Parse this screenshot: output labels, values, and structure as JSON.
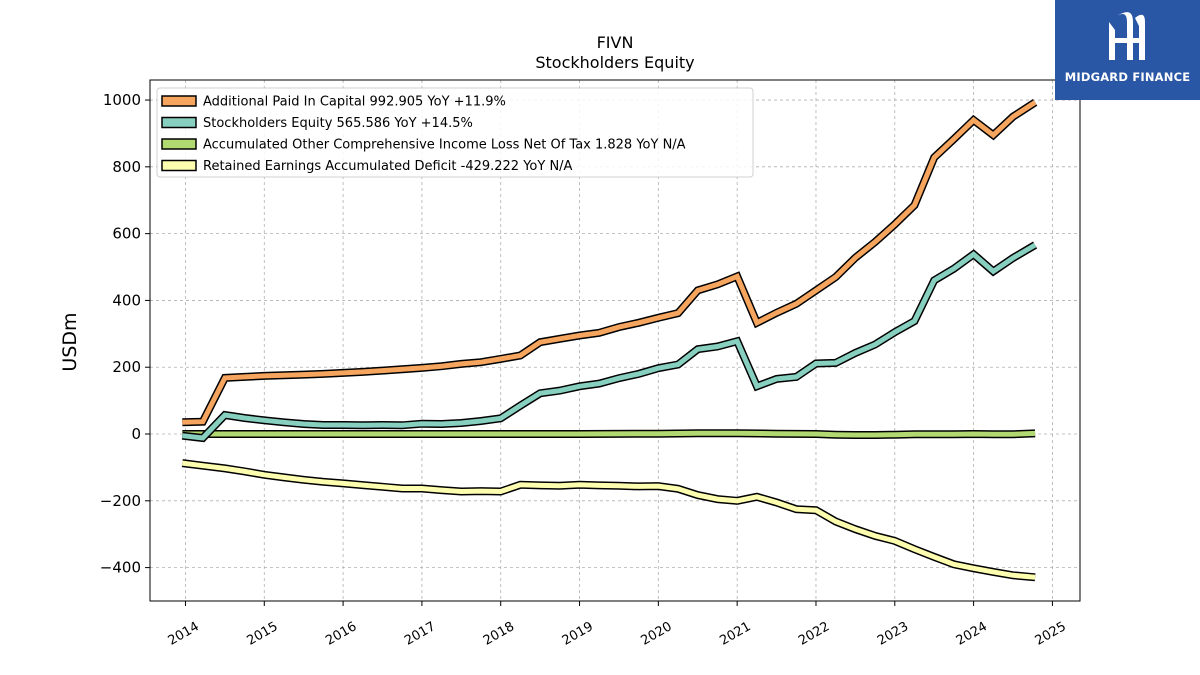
{
  "chart_data": {
    "type": "line",
    "title": "FIVN",
    "subtitle": "Stockholders  Equity",
    "ylabel": "USDm",
    "xlabel": "",
    "ylim": [
      -500,
      1060
    ],
    "xlim": [
      2013.55,
      2025.35
    ],
    "yticks": [
      -400,
      -200,
      0,
      200,
      400,
      600,
      800,
      1000
    ],
    "xticks": [
      2014,
      2015,
      2016,
      2017,
      2018,
      2019,
      2020,
      2021,
      2022,
      2023,
      2024,
      2025
    ],
    "grid": true,
    "legend_position": "top-left",
    "series": [
      {
        "name": "Additional Paid In Capital",
        "legend_label": "Additional Paid In Capital  992.905 YoY +11.9%",
        "color": "#f6a55f",
        "points": [
          [
            2013.96,
            35
          ],
          [
            2014.22,
            37
          ],
          [
            2014.5,
            168
          ],
          [
            2014.75,
            171
          ],
          [
            2015.0,
            174
          ],
          [
            2015.25,
            176
          ],
          [
            2015.5,
            178
          ],
          [
            2015.75,
            180
          ],
          [
            2016.0,
            183
          ],
          [
            2016.25,
            186
          ],
          [
            2016.5,
            190
          ],
          [
            2016.75,
            194
          ],
          [
            2017.0,
            198
          ],
          [
            2017.25,
            203
          ],
          [
            2017.5,
            210
          ],
          [
            2017.75,
            215
          ],
          [
            2018.0,
            225
          ],
          [
            2018.25,
            235
          ],
          [
            2018.5,
            275
          ],
          [
            2018.75,
            285
          ],
          [
            2019.0,
            295
          ],
          [
            2019.25,
            303
          ],
          [
            2019.5,
            320
          ],
          [
            2019.75,
            333
          ],
          [
            2020.0,
            348
          ],
          [
            2020.25,
            362
          ],
          [
            2020.5,
            430
          ],
          [
            2020.75,
            448
          ],
          [
            2021.0,
            472
          ],
          [
            2021.25,
            333
          ],
          [
            2021.5,
            363
          ],
          [
            2021.75,
            390
          ],
          [
            2022.0,
            430
          ],
          [
            2022.25,
            470
          ],
          [
            2022.5,
            528
          ],
          [
            2022.75,
            575
          ],
          [
            2023.0,
            628
          ],
          [
            2023.25,
            685
          ],
          [
            2023.5,
            828
          ],
          [
            2023.75,
            883
          ],
          [
            2024.0,
            940
          ],
          [
            2024.25,
            895
          ],
          [
            2024.5,
            950
          ],
          [
            2024.78,
            993
          ]
        ]
      },
      {
        "name": "Stockholders Equity",
        "legend_label": "Stockholders Equity  565.586 YoY +14.5%",
        "color": "#87cfbf",
        "points": [
          [
            2013.96,
            -5
          ],
          [
            2014.22,
            -12
          ],
          [
            2014.5,
            57
          ],
          [
            2014.75,
            48
          ],
          [
            2015.0,
            41
          ],
          [
            2015.25,
            35
          ],
          [
            2015.5,
            30
          ],
          [
            2015.75,
            27
          ],
          [
            2016.0,
            27
          ],
          [
            2016.25,
            26
          ],
          [
            2016.5,
            27
          ],
          [
            2016.75,
            26
          ],
          [
            2017.0,
            31
          ],
          [
            2017.25,
            30
          ],
          [
            2017.5,
            33
          ],
          [
            2017.75,
            39
          ],
          [
            2018.0,
            47
          ],
          [
            2018.25,
            85
          ],
          [
            2018.5,
            122
          ],
          [
            2018.75,
            130
          ],
          [
            2019.0,
            143
          ],
          [
            2019.25,
            151
          ],
          [
            2019.5,
            167
          ],
          [
            2019.75,
            180
          ],
          [
            2020.0,
            197
          ],
          [
            2020.25,
            208
          ],
          [
            2020.5,
            254
          ],
          [
            2020.75,
            262
          ],
          [
            2021.0,
            278
          ],
          [
            2021.25,
            143
          ],
          [
            2021.5,
            165
          ],
          [
            2021.75,
            171
          ],
          [
            2022.0,
            211
          ],
          [
            2022.25,
            213
          ],
          [
            2022.5,
            243
          ],
          [
            2022.75,
            268
          ],
          [
            2023.0,
            305
          ],
          [
            2023.25,
            338
          ],
          [
            2023.5,
            460
          ],
          [
            2023.75,
            495
          ],
          [
            2024.0,
            538
          ],
          [
            2024.25,
            487
          ],
          [
            2024.5,
            527
          ],
          [
            2024.78,
            566
          ]
        ]
      },
      {
        "name": "Accumulated Other Comprehensive Income Loss Net Of Tax",
        "legend_label": "Accumulated Other Comprehensive Income Loss Net Of Tax  1.828 YoY N/A",
        "color": "#b2d971",
        "points": [
          [
            2013.96,
            0
          ],
          [
            2015.0,
            0
          ],
          [
            2016.0,
            0
          ],
          [
            2017.0,
            0
          ],
          [
            2018.0,
            0
          ],
          [
            2019.0,
            0
          ],
          [
            2020.0,
            1
          ],
          [
            2020.5,
            2
          ],
          [
            2021.0,
            2
          ],
          [
            2021.5,
            1
          ],
          [
            2022.0,
            0
          ],
          [
            2022.25,
            -2
          ],
          [
            2022.5,
            -3
          ],
          [
            2022.75,
            -3
          ],
          [
            2023.0,
            -2
          ],
          [
            2023.25,
            -1
          ],
          [
            2023.5,
            -1
          ],
          [
            2023.75,
            -1
          ],
          [
            2024.0,
            0
          ],
          [
            2024.25,
            -1
          ],
          [
            2024.5,
            -1
          ],
          [
            2024.78,
            1.8
          ]
        ]
      },
      {
        "name": "Retained Earnings Accumulated Deficit",
        "legend_label": "Retained Earnings Accumulated Deficit  -429.222 YoY N/A",
        "color": "#fdfdb0",
        "points": [
          [
            2013.96,
            -87
          ],
          [
            2014.22,
            -95
          ],
          [
            2014.5,
            -103
          ],
          [
            2014.75,
            -112
          ],
          [
            2015.0,
            -122
          ],
          [
            2015.25,
            -130
          ],
          [
            2015.5,
            -137
          ],
          [
            2015.75,
            -143
          ],
          [
            2016.0,
            -148
          ],
          [
            2016.25,
            -153
          ],
          [
            2016.5,
            -158
          ],
          [
            2016.75,
            -163
          ],
          [
            2017.0,
            -163
          ],
          [
            2017.25,
            -168
          ],
          [
            2017.5,
            -172
          ],
          [
            2017.75,
            -171
          ],
          [
            2018.0,
            -172
          ],
          [
            2018.25,
            -152
          ],
          [
            2018.5,
            -154
          ],
          [
            2018.75,
            -155
          ],
          [
            2019.0,
            -152
          ],
          [
            2019.25,
            -154
          ],
          [
            2019.5,
            -155
          ],
          [
            2019.75,
            -157
          ],
          [
            2020.0,
            -156
          ],
          [
            2020.25,
            -164
          ],
          [
            2020.5,
            -183
          ],
          [
            2020.75,
            -195
          ],
          [
            2021.0,
            -200
          ],
          [
            2021.25,
            -188
          ],
          [
            2021.5,
            -205
          ],
          [
            2021.75,
            -225
          ],
          [
            2022.0,
            -228
          ],
          [
            2022.25,
            -262
          ],
          [
            2022.5,
            -285
          ],
          [
            2022.75,
            -305
          ],
          [
            2023.0,
            -320
          ],
          [
            2023.25,
            -345
          ],
          [
            2023.5,
            -368
          ],
          [
            2023.75,
            -390
          ],
          [
            2024.0,
            -402
          ],
          [
            2024.25,
            -413
          ],
          [
            2024.5,
            -423
          ],
          [
            2024.78,
            -429
          ]
        ]
      }
    ]
  },
  "logo": {
    "text": "MIDGARD FINANCE",
    "color": "#2a56a6"
  }
}
